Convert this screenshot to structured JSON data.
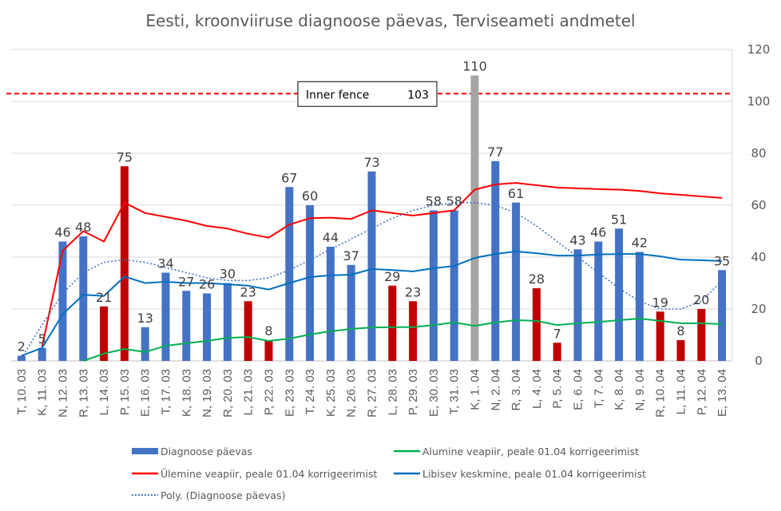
{
  "chart_data": {
    "type": "bar",
    "title": "Eesti, kroonviiruse diagnoose päevas, Terviseameti andmetel",
    "xlabel": "",
    "ylabel": "",
    "ylim": [
      0,
      120
    ],
    "yticks": [
      "0",
      "20",
      "40",
      "60",
      "80",
      "100",
      "120"
    ],
    "grid": true,
    "legend_position": "bottom",
    "categories": [
      "T, 10. 03",
      "K, 11. 03",
      "N, 12. 03",
      "R, 13. 03",
      "L, 14. 03",
      "P, 15. 03",
      "E, 16. 03",
      "T, 17. 03",
      "K, 18. 03",
      "N, 19. 03",
      "R, 20. 03",
      "L, 21. 03",
      "P, 22. 03",
      "E, 23. 03",
      "T, 24. 03",
      "K, 25. 03",
      "N, 26. 03",
      "R, 27. 03",
      "L, 28. 03",
      "P, 29. 03",
      "E, 30. 03",
      "T, 31. 03",
      "K, 1. 04",
      "N, 2. 04",
      "R, 3. 04",
      "L, 4. 04",
      "P, 5. 04",
      "E, 6. 04",
      "T, 7. 04",
      "K, 8. 04",
      "N, 9. 04",
      "R, 10. 04",
      "L, 11. 04",
      "P, 12. 04",
      "E, 13. 04"
    ],
    "bars": {
      "name": "Diagnoose päevas",
      "values": [
        2,
        5,
        46,
        48,
        21,
        75,
        13,
        34,
        27,
        26,
        30,
        23,
        8,
        67,
        60,
        44,
        37,
        73,
        29,
        23,
        58,
        58,
        110,
        77,
        61,
        28,
        7,
        43,
        46,
        51,
        42,
        19,
        8,
        20,
        35
      ],
      "labels": [
        "2",
        "5",
        "46",
        "48",
        "21",
        "75",
        "13",
        "34",
        "27",
        "26",
        "30",
        "23",
        "8",
        "67",
        "60",
        "44",
        "37",
        "73",
        "29",
        "23",
        "58",
        "58",
        "110",
        "77",
        "61",
        "28",
        "7",
        "43",
        "46",
        "51",
        "42",
        "19",
        "8",
        "20",
        "35"
      ],
      "kinds": [
        "w",
        "w",
        "w",
        "w",
        "e",
        "e",
        "w",
        "w",
        "w",
        "w",
        "w",
        "e",
        "e",
        "w",
        "w",
        "w",
        "w",
        "w",
        "e",
        "e",
        "w",
        "w",
        "o",
        "w",
        "w",
        "e",
        "e",
        "w",
        "w",
        "w",
        "w",
        "e",
        "e",
        "e",
        "w"
      ]
    },
    "series": [
      {
        "name": "Alumine veapiir, peale 01.04 korrigeerimist",
        "color": "#00B050",
        "values": [
          null,
          null,
          null,
          0,
          2.8,
          4.6,
          3.4,
          5.8,
          6.8,
          7.7,
          8.9,
          9.2,
          7.7,
          8.6,
          10.2,
          11.4,
          12.3,
          12.9,
          13.0,
          13.0,
          13.8,
          14.8,
          13.5,
          14.8,
          15.7,
          15.4,
          13.8,
          14.5,
          15.0,
          15.7,
          16.3,
          15.4,
          14.5,
          14.5,
          14.2
        ]
      },
      {
        "name": "Ülemine veapiir, peale 01.04 korrigeerimist",
        "color": "#FF0000",
        "values": [
          null,
          5.5,
          42.5,
          50,
          46,
          61,
          57,
          55.5,
          54,
          52,
          51,
          49,
          47.5,
          52.5,
          55,
          55.2,
          54.7,
          58,
          57,
          56,
          57,
          58,
          66,
          68,
          68.6,
          67.7,
          66.8,
          66.5,
          66.2,
          66,
          65.5,
          64.6,
          64,
          63.4,
          62.8
        ]
      },
      {
        "name": "Libisev keskmine, peale 01.04 korrigeerimist",
        "color": "#0070C0",
        "values": [
          2,
          5,
          18,
          25.5,
          25,
          32.5,
          30,
          30.5,
          30,
          30,
          29.5,
          29,
          27.5,
          30,
          32.3,
          33,
          33.2,
          35.4,
          35,
          34.5,
          35.7,
          36.6,
          39.7,
          41.2,
          42.2,
          41.5,
          40.6,
          40.6,
          41,
          41.2,
          41.2,
          40.3,
          39,
          38.8,
          38.5
        ]
      },
      {
        "name": "Poly. (Diagnoose päevas)",
        "color": "#4472C4",
        "style": "dotted",
        "values": [
          1,
          14,
          26,
          34,
          38,
          39,
          38,
          36,
          34,
          32,
          31,
          31,
          32,
          35,
          39,
          43,
          47,
          51,
          55,
          58,
          60,
          61,
          61,
          60,
          57,
          52,
          46,
          40,
          34,
          28,
          23,
          20,
          20,
          23,
          31
        ]
      }
    ],
    "colors": {
      "bar_normal": "#4472C4",
      "bar_weekend": "#C00000",
      "bar_outlier": "#A5A5A5",
      "fence": "#FF0000",
      "grid": "#D9D9D9"
    },
    "annotation": {
      "label": "Inner fence",
      "value_label": "103",
      "value": 103
    },
    "legend": [
      {
        "label": "Diagnoose päevas",
        "kind": "bar"
      },
      {
        "label": "Alumine veapiir, peale 01.04 korrigeerimist",
        "kind": "line-green"
      },
      {
        "label": "Ülemine veapiir, peale 01.04 korrigeerimist",
        "kind": "line-red"
      },
      {
        "label": "Libisev keskmine, peale 01.04 korrigeerimist",
        "kind": "line-blue"
      },
      {
        "label": "Poly. (Diagnoose päevas)",
        "kind": "dotted"
      }
    ]
  }
}
